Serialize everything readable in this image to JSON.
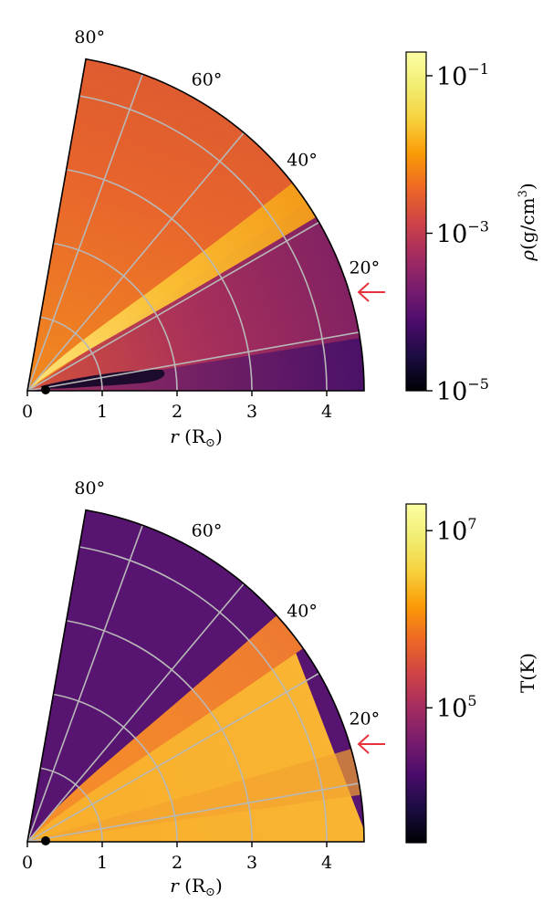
{
  "chart_data": [
    {
      "type": "heatmap",
      "projection": "polar-wedge",
      "quantity": "density",
      "colormap": "inferno",
      "color_scale": "log",
      "colorbar_range": [
        1e-05,
        0.2
      ],
      "colorbar_ticks": [
        "10^{-1}",
        "10^{-3}",
        "10^{-5}"
      ],
      "colorbar_tick_values": [
        -1,
        -3,
        -5
      ],
      "colorbar_label": "ρ(g/cm³)",
      "xlabel": "r (R⊙)",
      "x_ticks": [
        "0",
        "1",
        "2",
        "3",
        "4"
      ],
      "r_max": 4.5,
      "theta_range_deg": [
        0,
        80
      ],
      "angle_labels": [
        "80°",
        "60°",
        "40°",
        "20°"
      ],
      "angle_values": [
        80,
        60,
        40,
        20
      ],
      "grid": true,
      "arrow_annotation_angle_deg": 20,
      "arrow_color": "#e8323c"
    },
    {
      "type": "heatmap",
      "projection": "polar-wedge",
      "quantity": "temperature",
      "colormap": "inferno",
      "color_scale": "log",
      "colorbar_range": [
        3000.0,
        20000000.0
      ],
      "colorbar_ticks": [
        "10^{7}",
        "10^{5}"
      ],
      "colorbar_tick_values": [
        7,
        5
      ],
      "colorbar_label": "T(K)",
      "xlabel": "r (R⊙)",
      "x_ticks": [
        "0",
        "1",
        "2",
        "3",
        "4"
      ],
      "r_max": 4.5,
      "theta_range_deg": [
        0,
        80
      ],
      "angle_labels": [
        "80°",
        "60°",
        "40°",
        "20°"
      ],
      "angle_values": [
        80,
        60,
        40,
        20
      ],
      "grid": true,
      "arrow_annotation_angle_deg": 20,
      "arrow_color": "#e8323c"
    }
  ]
}
